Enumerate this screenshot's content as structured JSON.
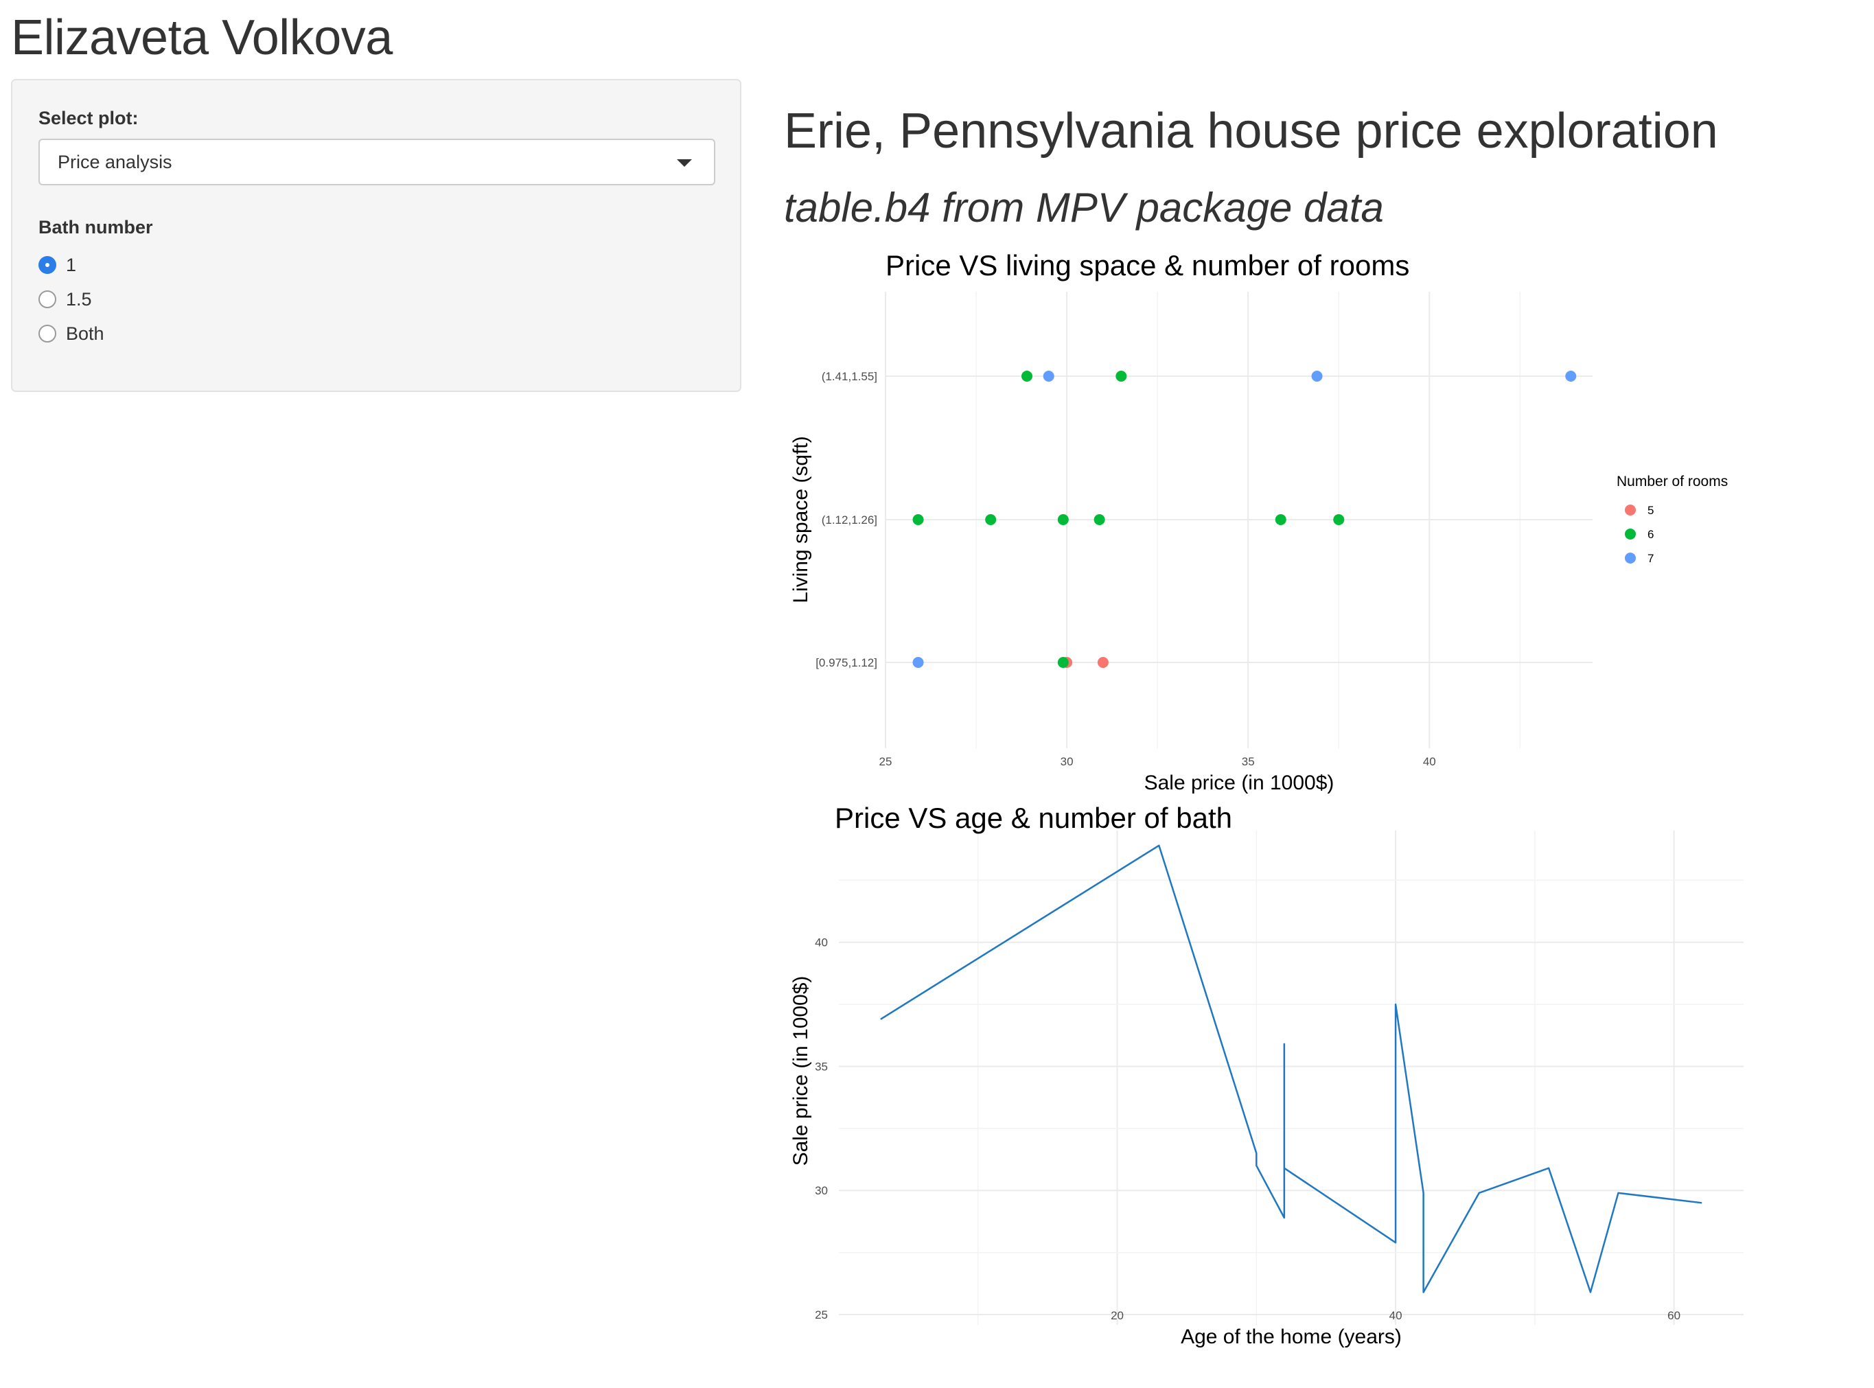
{
  "app_title": "Elizaveta Volkova",
  "sidebar": {
    "select_label": "Select plot:",
    "select_value": "Price analysis",
    "radio_label": "Bath number",
    "radio_options": [
      "1",
      "1.5",
      "Both"
    ],
    "radio_selected": "1"
  },
  "main": {
    "title": "Erie, Pennsylvania house price exploration",
    "subtitle": "table.b4 from MPV package data"
  },
  "chart_data": [
    {
      "type": "scatter",
      "title": "Price VS living space & number of rooms",
      "xlabel": "Sale price (in 1000$)",
      "ylabel": "Living space (sqft)",
      "x_ticks": [
        25,
        30,
        35,
        40
      ],
      "xlim": [
        25,
        44.5
      ],
      "categories": [
        "[0.975,1.12]",
        "(1.12,1.26]",
        "(1.41,1.55]"
      ],
      "legend": {
        "title": "Number of rooms",
        "placement": "right"
      },
      "grid": true,
      "series": [
        {
          "name": "5",
          "color": "#F8766D",
          "points": [
            [
              30,
              "[0.975,1.12]"
            ],
            [
              31,
              "[0.975,1.12]"
            ]
          ]
        },
        {
          "name": "6",
          "color": "#00BA38",
          "points": [
            [
              29.9,
              "[0.975,1.12]"
            ],
            [
              25.9,
              "(1.12,1.26]"
            ],
            [
              27.9,
              "(1.12,1.26]"
            ],
            [
              29.9,
              "(1.12,1.26]"
            ],
            [
              30.9,
              "(1.12,1.26]"
            ],
            [
              35.9,
              "(1.12,1.26]"
            ],
            [
              37.5,
              "(1.12,1.26]"
            ],
            [
              28.9,
              "(1.41,1.55]"
            ],
            [
              31.5,
              "(1.41,1.55]"
            ]
          ]
        },
        {
          "name": "7",
          "color": "#619CFF",
          "points": [
            [
              25.9,
              "[0.975,1.12]"
            ],
            [
              29.5,
              "(1.41,1.55]"
            ],
            [
              36.9,
              "(1.41,1.55]"
            ],
            [
              43.9,
              "(1.41,1.55]"
            ]
          ]
        }
      ]
    },
    {
      "type": "line",
      "title": "Price VS age & number of bath",
      "xlabel": "Age of the home (years)",
      "ylabel": "Sale price (in 1000$)",
      "x_ticks": [
        20,
        40,
        60
      ],
      "y_ticks": [
        25,
        30,
        35,
        40
      ],
      "xlim": [
        0,
        65
      ],
      "ylim": [
        25,
        44.5
      ],
      "grid": true,
      "color": "#1F78C1",
      "x": [
        3,
        23,
        30,
        30,
        32,
        32,
        32,
        40,
        40,
        42,
        42,
        46,
        51,
        54,
        56,
        62
      ],
      "y": [
        36.9,
        43.9,
        31.5,
        31,
        28.9,
        35.9,
        30.9,
        27.9,
        37.5,
        29.9,
        25.9,
        29.9,
        30.9,
        25.9,
        29.9,
        29.5
      ]
    }
  ]
}
